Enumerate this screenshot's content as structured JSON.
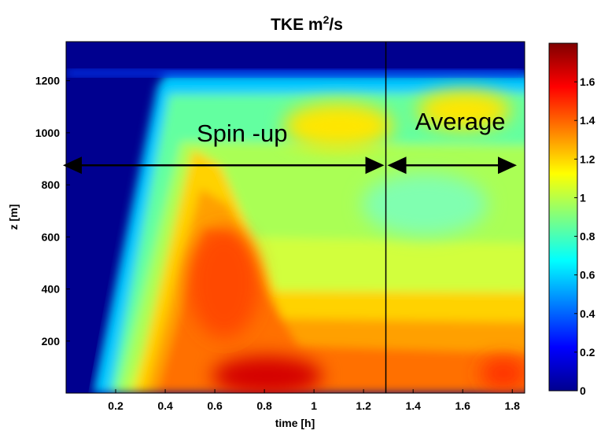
{
  "chart_data": {
    "type": "heatmap",
    "title": "TKE m",
    "title_sup": "2",
    "title_suffix": "/s",
    "xlabel": "time [h]",
    "ylabel": "z [m]",
    "xlim": [
      0,
      1.85
    ],
    "ylim": [
      0,
      1350
    ],
    "xticks": [
      0.2,
      0.4,
      0.6,
      0.8,
      1,
      1.2,
      1.4,
      1.6,
      1.8
    ],
    "xtick_labels": [
      "0.2",
      "0.4",
      "0.6",
      "0.8",
      "1",
      "1.2",
      "1.4",
      "1.6",
      "1.8"
    ],
    "yticks": [
      200,
      400,
      600,
      800,
      1000,
      1200
    ],
    "ytick_labels": [
      "200",
      "400",
      "600",
      "800",
      "1000",
      "1200"
    ],
    "colorbar": {
      "range": [
        0,
        1.8
      ],
      "ticks": [
        0,
        0.2,
        0.4,
        0.6,
        0.8,
        1,
        1.2,
        1.4,
        1.6
      ],
      "tick_labels": [
        "0",
        "0.2",
        "0.4",
        "0.6",
        "0.8",
        "1",
        "1.2",
        "1.4",
        "1.6"
      ],
      "colormap": "jet"
    },
    "vline_x": 1.29,
    "annotations": [
      {
        "text": "Spin -up",
        "x": 0.71,
        "y": 1000,
        "arrow_from": 0,
        "arrow_to": 1.29,
        "arrow_y": 875
      },
      {
        "text": "Average",
        "x": 1.59,
        "y": 1045,
        "arrow_from": 1.29,
        "arrow_to": 1.85,
        "arrow_y": 875
      }
    ],
    "grid": false
  }
}
